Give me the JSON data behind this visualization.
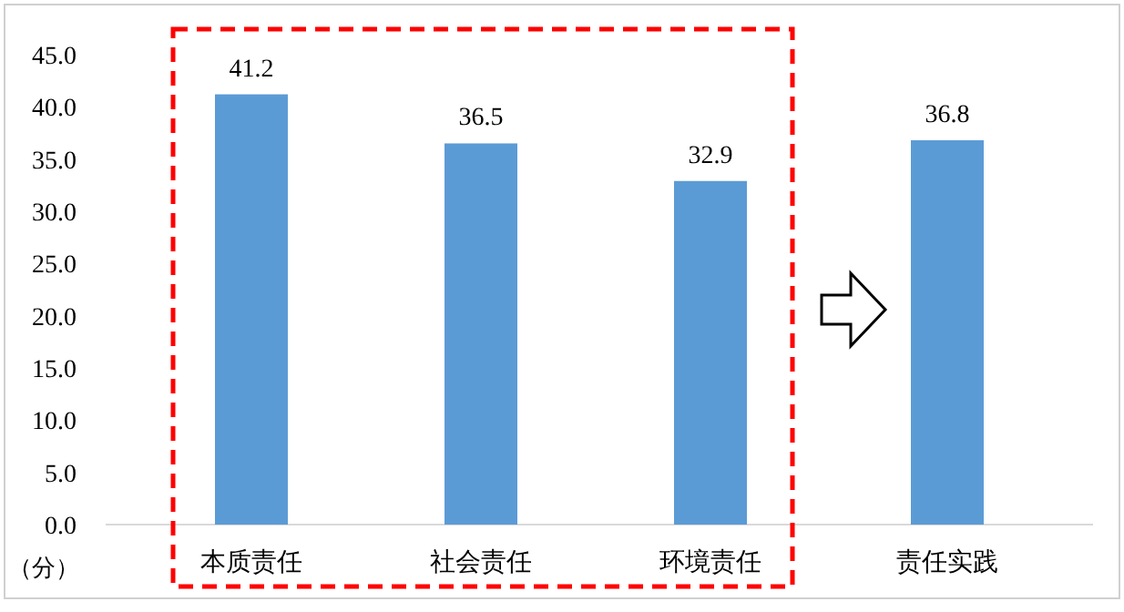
{
  "chart_data": {
    "type": "bar",
    "ylabel": "（分）",
    "categories": [
      "本质责任",
      "社会责任",
      "环境责任",
      "责任实践"
    ],
    "values": [
      41.2,
      36.5,
      32.9,
      36.8
    ],
    "color": "#5b9bd5",
    "ylim": [
      0,
      45
    ],
    "yticks": [
      {
        "value": 0,
        "label": "0.0"
      },
      {
        "value": 5,
        "label": "5.0"
      },
      {
        "value": 10,
        "label": "10.0"
      },
      {
        "value": 15,
        "label": "15.0"
      },
      {
        "value": 20,
        "label": "20.0"
      },
      {
        "value": 25,
        "label": "25.0"
      },
      {
        "value": 30,
        "label": "30.0"
      },
      {
        "value": 35,
        "label": "35.0"
      },
      {
        "value": 40,
        "label": "40.0"
      },
      {
        "value": 45,
        "label": "45.0"
      }
    ],
    "grid": false,
    "data_labels": true
  }
}
